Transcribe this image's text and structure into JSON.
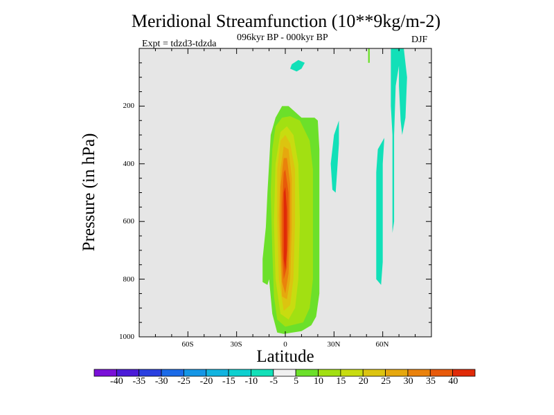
{
  "chart_data": {
    "type": "heatmap",
    "title": "Meridional Streamfunction (10**9kg/m-2)",
    "subtitle": "096kyr BP - 000kyr BP",
    "experiment": "Expt = tdzd3-tdzda",
    "season": "DJF",
    "xlabel": "Latitude",
    "ylabel": "Pressure (in hPa)",
    "xlim": [
      -90,
      90
    ],
    "ylim": [
      1000,
      0
    ],
    "xticks": [
      -60,
      -30,
      0,
      30,
      60
    ],
    "xtick_labels": [
      "60S",
      "30S",
      "0",
      "30N",
      "60N"
    ],
    "yticks": [
      200,
      400,
      600,
      800,
      1000
    ],
    "ytick_labels": [
      "200",
      "400",
      "600",
      "800",
      "1000"
    ],
    "colorbar": {
      "labels": [
        "-40",
        "-35",
        "-30",
        "-25",
        "-20",
        "-15",
        "-10",
        "-5",
        "5",
        "10",
        "15",
        "20",
        "25",
        "30",
        "35",
        "40"
      ],
      "colors": [
        "#7a10d8",
        "#4b1bd8",
        "#2a40e0",
        "#1b6be8",
        "#1596e6",
        "#12b4e0",
        "#0ed0d0",
        "#12e0b8",
        "#f0f0f0",
        "#6ce02a",
        "#a2e012",
        "#c8dc10",
        "#dcc410",
        "#e6a80e",
        "#ea820c",
        "#e85a0a",
        "#e02a08"
      ]
    },
    "contours": [
      {
        "name": "shallow-negative-cell",
        "level": -5,
        "polygon": [
          [
            8,
            40
          ],
          [
            12,
            50
          ],
          [
            10,
            70
          ],
          [
            7,
            80
          ],
          [
            3,
            70
          ],
          [
            4,
            55
          ]
        ]
      },
      {
        "name": "negative-cell-30n",
        "level": -5,
        "polygon": [
          [
            33,
            250
          ],
          [
            33,
            330
          ],
          [
            32,
            420
          ],
          [
            31,
            500
          ],
          [
            29,
            490
          ],
          [
            28,
            400
          ],
          [
            30,
            300
          ]
        ]
      },
      {
        "name": "negative-cell-60n",
        "level": -5,
        "polygon": [
          [
            61,
            310
          ],
          [
            60,
            400
          ],
          [
            60,
            600
          ],
          [
            60,
            740
          ],
          [
            59,
            820
          ],
          [
            56,
            800
          ],
          [
            56,
            640
          ],
          [
            56,
            430
          ],
          [
            57,
            350
          ]
        ]
      },
      {
        "name": "negative-cell-polar",
        "level": -5,
        "polygon": [
          [
            73,
            0
          ],
          [
            75,
            100
          ],
          [
            74,
            240
          ],
          [
            72,
            300
          ],
          [
            71,
            250
          ],
          [
            70,
            130
          ],
          [
            70,
            60
          ],
          [
            68,
            130
          ],
          [
            67,
            300
          ],
          [
            67,
            600
          ],
          [
            66,
            640
          ],
          [
            66,
            500
          ],
          [
            66,
            300
          ],
          [
            65,
            200
          ],
          [
            65,
            0
          ]
        ]
      },
      {
        "name": "thin-positive-streak",
        "level": 5,
        "polygon": [
          [
            52,
            0
          ],
          [
            52,
            50
          ],
          [
            51,
            50
          ],
          [
            51,
            0
          ]
        ]
      },
      {
        "name": "positive-cell-5",
        "level": 5,
        "polygon": [
          [
            20,
            250
          ],
          [
            21,
            350
          ],
          [
            21,
            700
          ],
          [
            21,
            850
          ],
          [
            19,
            930
          ],
          [
            16,
            960
          ],
          [
            10,
            980
          ],
          [
            -1,
            990
          ],
          [
            -5,
            985
          ],
          [
            -8,
            920
          ],
          [
            -9,
            860
          ],
          [
            -10,
            800
          ],
          [
            -11,
            820
          ],
          [
            -14,
            810
          ],
          [
            -14,
            730
          ],
          [
            -12,
            620
          ],
          [
            -11,
            500
          ],
          [
            -10,
            400
          ],
          [
            -9,
            300
          ],
          [
            -6,
            240
          ],
          [
            -2,
            200
          ],
          [
            2,
            200
          ],
          [
            6,
            220
          ],
          [
            10,
            240
          ],
          [
            14,
            240
          ],
          [
            18,
            240
          ]
        ]
      },
      {
        "name": "positive-cell-10",
        "level": 10,
        "polygon": [
          [
            9,
            250
          ],
          [
            15,
            320
          ],
          [
            17,
            420
          ],
          [
            17,
            600
          ],
          [
            17,
            800
          ],
          [
            15,
            900
          ],
          [
            11,
            950
          ],
          [
            0,
            965
          ],
          [
            -5,
            940
          ],
          [
            -7,
            860
          ],
          [
            -8,
            700
          ],
          [
            -9,
            500
          ],
          [
            -8,
            350
          ],
          [
            -6,
            270
          ],
          [
            -2,
            240
          ],
          [
            3,
            235
          ]
        ]
      },
      {
        "name": "positive-cell-15",
        "level": 15,
        "polygon": [
          [
            5,
            300
          ],
          [
            8,
            400
          ],
          [
            9,
            600
          ],
          [
            8,
            800
          ],
          [
            6,
            900
          ],
          [
            2,
            940
          ],
          [
            -3,
            920
          ],
          [
            -6,
            800
          ],
          [
            -7,
            600
          ],
          [
            -6,
            400
          ],
          [
            -3,
            290
          ],
          [
            1,
            270
          ]
        ]
      },
      {
        "name": "positive-cell-20",
        "level": 20,
        "polygon": [
          [
            3,
            330
          ],
          [
            6,
            420
          ],
          [
            6,
            600
          ],
          [
            5,
            800
          ],
          [
            3,
            890
          ],
          [
            -1,
            910
          ],
          [
            -4,
            800
          ],
          [
            -5,
            600
          ],
          [
            -5,
            420
          ],
          [
            -3,
            320
          ],
          [
            0,
            300
          ]
        ]
      },
      {
        "name": "positive-cell-25",
        "level": 25,
        "polygon": [
          [
            2,
            350
          ],
          [
            4,
            450
          ],
          [
            4,
            620
          ],
          [
            3,
            800
          ],
          [
            1,
            870
          ],
          [
            -2,
            860
          ],
          [
            -3,
            750
          ],
          [
            -4,
            580
          ],
          [
            -3,
            420
          ],
          [
            -1,
            340
          ]
        ]
      },
      {
        "name": "positive-cell-30",
        "level": 30,
        "polygon": [
          [
            1,
            380
          ],
          [
            3,
            470
          ],
          [
            3,
            620
          ],
          [
            2,
            780
          ],
          [
            0,
            850
          ],
          [
            -2,
            810
          ],
          [
            -3,
            650
          ],
          [
            -3,
            480
          ],
          [
            -1,
            380
          ]
        ]
      },
      {
        "name": "positive-cell-35",
        "level": 35,
        "polygon": [
          [
            0,
            420
          ],
          [
            2,
            500
          ],
          [
            2,
            620
          ],
          [
            1,
            760
          ],
          [
            -1,
            800
          ],
          [
            -2,
            700
          ],
          [
            -2,
            540
          ],
          [
            -1,
            430
          ]
        ]
      },
      {
        "name": "positive-cell-40",
        "level": 40,
        "polygon": [
          [
            0,
            480
          ],
          [
            1,
            560
          ],
          [
            1,
            700
          ],
          [
            0,
            770
          ],
          [
            -1,
            730
          ],
          [
            -1,
            600
          ],
          [
            -1,
            500
          ]
        ]
      }
    ]
  }
}
